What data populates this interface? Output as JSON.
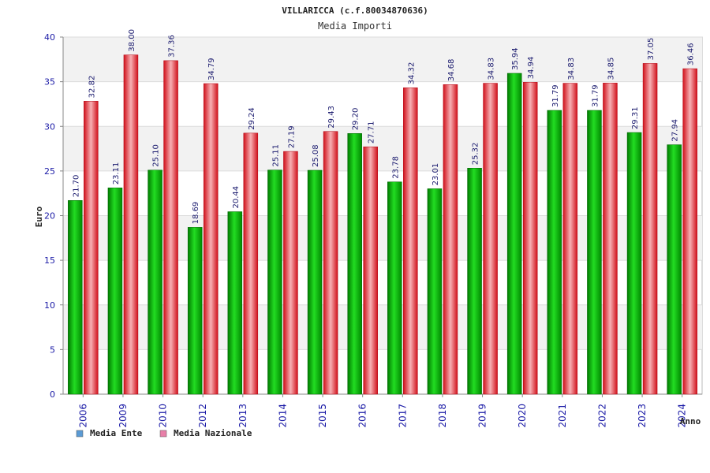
{
  "chart_data": {
    "type": "bar",
    "title": "VILLARICCA (c.f.80034870636)",
    "subtitle": "Media Importi",
    "ylabel": "Euro",
    "xlabel": "Anno",
    "ylim": [
      0,
      40
    ],
    "yticks": [
      0,
      5,
      10,
      15,
      20,
      25,
      30,
      35,
      40
    ],
    "ytick_labels": [
      "0",
      "5",
      "10",
      "15",
      "20",
      "25",
      "30",
      "35",
      "40"
    ],
    "grid": true,
    "legend_position": "bottom-left",
    "categories": [
      "2006",
      "2009",
      "2010",
      "2012",
      "2013",
      "2014",
      "2015",
      "2016",
      "2017",
      "2018",
      "2019",
      "2020",
      "2021",
      "2022",
      "2023",
      "2024"
    ],
    "series": [
      {
        "name": "Media Ente",
        "color": "#00b000",
        "legend_color": "#5b9bd5",
        "values": [
          21.7,
          23.11,
          25.1,
          18.69,
          20.44,
          25.11,
          25.08,
          29.2,
          23.78,
          23.01,
          25.32,
          35.94,
          31.79,
          31.79,
          29.31,
          27.94
        ],
        "labels": [
          "21.70",
          "23.11",
          "25.10",
          "18.69",
          "20.44",
          "25.11",
          "25.08",
          "29.20",
          "23.78",
          "23.01",
          "25.32",
          "35.94",
          "31.79",
          "31.79",
          "29.31",
          "27.94"
        ]
      },
      {
        "name": "Media Nazionale",
        "color": "#e8202a",
        "legend_color": "#e87fa8",
        "values": [
          32.82,
          38.0,
          37.36,
          34.79,
          29.24,
          27.19,
          29.43,
          27.71,
          34.32,
          34.68,
          34.83,
          34.94,
          34.83,
          34.85,
          37.05,
          36.46
        ],
        "labels": [
          "32.82",
          "38.00",
          "37.36",
          "34.79",
          "29.24",
          "27.19",
          "29.43",
          "27.71",
          "34.32",
          "34.68",
          "34.83",
          "34.94",
          "34.83",
          "34.85",
          "37.05",
          "36.46"
        ]
      }
    ]
  }
}
